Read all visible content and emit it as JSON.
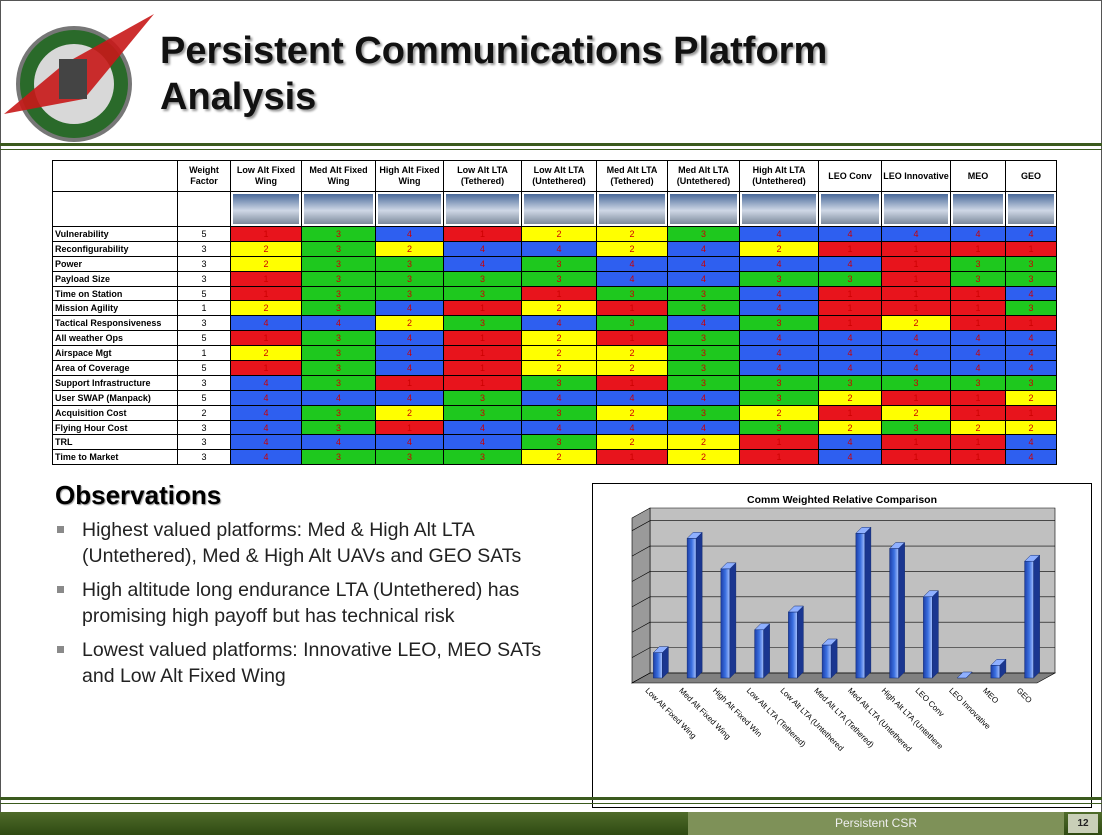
{
  "header": {
    "title": "Persistent Communications Platform Analysis"
  },
  "table": {
    "columns": [
      "Weight Factor",
      "Low Alt Fixed Wing",
      "Med Alt Fixed Wing",
      "High Alt Fixed Wing",
      "Low Alt LTA (Tethered)",
      "Low Alt LTA (Untethered)",
      "Med Alt LTA (Tethered)",
      "Med Alt LTA (Untethered)",
      "High Alt LTA (Untethered)",
      "LEO Conv",
      "LEO Innovative",
      "MEO",
      "GEO"
    ],
    "score_colors": {
      "1": "#e8141c",
      "2": "#ffff00",
      "3": "#1ec81e",
      "4": "#2e5ff0"
    },
    "rows": [
      {
        "label": "Vulnerability",
        "weight": 5,
        "scores": [
          1,
          3,
          4,
          1,
          2,
          2,
          3,
          4,
          4,
          4,
          4,
          4
        ]
      },
      {
        "label": "Reconfigurability",
        "weight": 3,
        "scores": [
          2,
          3,
          2,
          4,
          4,
          2,
          4,
          2,
          1,
          1,
          1,
          1
        ]
      },
      {
        "label": "Power",
        "weight": 3,
        "scores": [
          2,
          3,
          3,
          4,
          3,
          4,
          4,
          4,
          4,
          1,
          3,
          3
        ]
      },
      {
        "label": "Payload Size",
        "weight": 3,
        "scores": [
          1,
          3,
          3,
          3,
          3,
          4,
          4,
          3,
          3,
          1,
          3,
          3
        ]
      },
      {
        "label": "Time on Station",
        "weight": 5,
        "scores": [
          1,
          3,
          3,
          3,
          1,
          3,
          3,
          4,
          1,
          1,
          1,
          4
        ]
      },
      {
        "label": "Mission Agility",
        "weight": 1,
        "scores": [
          2,
          3,
          4,
          1,
          2,
          1,
          3,
          4,
          1,
          1,
          1,
          3
        ]
      },
      {
        "label": "Tactical Responsiveness",
        "weight": 3,
        "scores": [
          4,
          4,
          2,
          3,
          4,
          3,
          4,
          3,
          1,
          2,
          1,
          1
        ]
      },
      {
        "label": "All weather Ops",
        "weight": 5,
        "scores": [
          1,
          3,
          4,
          1,
          2,
          1,
          3,
          4,
          4,
          4,
          4,
          4
        ]
      },
      {
        "label": "Airspace Mgt",
        "weight": 1,
        "scores": [
          2,
          3,
          4,
          1,
          2,
          2,
          3,
          4,
          4,
          4,
          4,
          4
        ]
      },
      {
        "label": "Area of Coverage",
        "weight": 5,
        "scores": [
          1,
          3,
          4,
          1,
          2,
          2,
          3,
          4,
          4,
          4,
          4,
          4
        ]
      },
      {
        "label": "Support Infrastructure",
        "weight": 3,
        "scores": [
          4,
          3,
          1,
          1,
          3,
          1,
          3,
          3,
          3,
          3,
          3,
          3
        ]
      },
      {
        "label": "User SWAP (Manpack)",
        "weight": 5,
        "scores": [
          4,
          4,
          4,
          3,
          4,
          4,
          4,
          3,
          2,
          1,
          1,
          2
        ]
      },
      {
        "label": "Acquisition Cost",
        "weight": 2,
        "scores": [
          4,
          3,
          2,
          3,
          3,
          2,
          3,
          2,
          1,
          2,
          1,
          1
        ]
      },
      {
        "label": "Flying Hour Cost",
        "weight": 3,
        "scores": [
          4,
          3,
          1,
          4,
          4,
          4,
          4,
          3,
          2,
          3,
          2,
          2
        ]
      },
      {
        "label": "TRL",
        "weight": 3,
        "scores": [
          4,
          4,
          4,
          4,
          3,
          2,
          2,
          1,
          4,
          1,
          1,
          4
        ]
      },
      {
        "label": "Time to Market",
        "weight": 3,
        "scores": [
          4,
          3,
          3,
          3,
          2,
          1,
          2,
          1,
          4,
          1,
          1,
          4
        ]
      }
    ]
  },
  "observations": {
    "heading": "Observations",
    "bullets": [
      "Highest valued platforms:  Med & High Alt LTA (Untethered), Med & High Alt UAVs and GEO SATs",
      "High altitude long endurance LTA (Untethered) has promising high payoff but has technical risk",
      "Lowest valued platforms:  Innovative LEO, MEO SATs and Low Alt Fixed Wing"
    ]
  },
  "chart_data": {
    "type": "bar3d",
    "title": "Comm Weighted Relative Comparison",
    "categories": [
      "Low Alt Fixed Wing",
      "Med Alt Fixed Wing",
      "High Alt Fixed Win",
      "Low Alt LTA (Tethered)",
      "Low Alt LTA (Untethered",
      "Med Alt LTA (Tethered)",
      "Med Alt LTA (Untethered",
      "High Alt LTA (Untethere",
      "LEO Conv",
      "LEO Innovative",
      "MEO",
      "GEO"
    ],
    "values": [
      1.0,
      5.5,
      4.3,
      1.9,
      2.6,
      1.3,
      5.7,
      5.1,
      3.2,
      0,
      0.5,
      4.6
    ],
    "color": "#3a6fe0",
    "ylim": [
      0,
      6.5
    ],
    "yticks": [
      0,
      1,
      2,
      3,
      4,
      5,
      6
    ],
    "grid": true
  },
  "footer": {
    "label": "Persistent CSR",
    "page": 12
  }
}
